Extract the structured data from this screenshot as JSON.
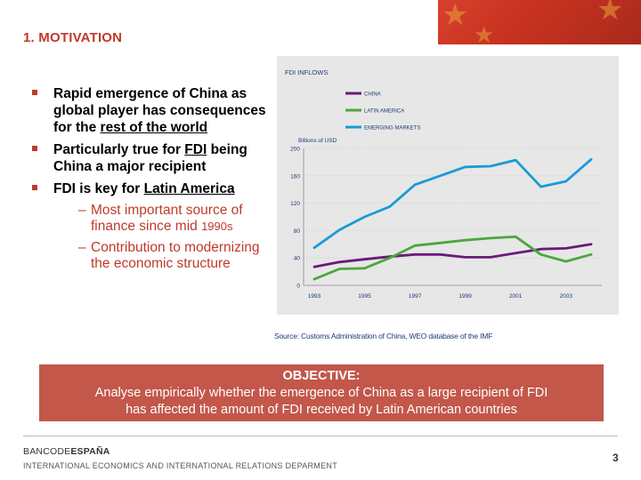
{
  "slide": {
    "title": "1. MOTIVATION",
    "page_number": "3"
  },
  "bullets": [
    {
      "parts": [
        "Rapid emergence of China as global player has consequences for the ",
        "rest of the world",
        ""
      ]
    },
    {
      "parts": [
        "Particularly true for ",
        "FDI",
        " being China a major recipient"
      ]
    },
    {
      "parts": [
        "FDI is key for ",
        "Latin America",
        ""
      ]
    }
  ],
  "sub_bullets": [
    {
      "dash": "–",
      "text": "Most important source of finance since mid ",
      "small": "1990s"
    },
    {
      "dash": "–",
      "text": "Contribution to modernizing the economic structure",
      "small": ""
    }
  ],
  "chart_data": {
    "type": "line",
    "title": "FDI INFLOWS",
    "ylabel": "Billions of USD",
    "ylim": [
      0,
      200
    ],
    "yticks": [
      0,
      40,
      80,
      120,
      160,
      200
    ],
    "x": [
      1993,
      1994,
      1995,
      1996,
      1997,
      1998,
      1999,
      2000,
      2001,
      2002,
      2003,
      2004
    ],
    "xtick_labels": [
      "1993",
      "1995",
      "1997",
      "1999",
      "2001",
      "2003"
    ],
    "legend_position": "top-center",
    "series": [
      {
        "name": "CHINA",
        "color": "#6a1a78",
        "values": [
          27,
          34,
          38,
          42,
          45,
          45,
          41,
          41,
          47,
          53,
          54,
          60
        ]
      },
      {
        "name": "LATIN AMERICA",
        "color": "#4aa83c",
        "values": [
          9,
          24,
          25,
          40,
          58,
          62,
          66,
          69,
          71,
          45,
          35,
          45
        ]
      },
      {
        "name": "EMERGING MARKETS",
        "color": "#1b9ad6",
        "values": [
          55,
          81,
          100,
          115,
          147,
          160,
          173,
          174,
          183,
          144,
          152,
          184
        ]
      }
    ],
    "source": "Source: Customs Administration of China, WEO database of the IMF"
  },
  "objective": {
    "label": "OBJECTIVE:",
    "text": "Analyse empirically whether the emergence of China as a large recipient of FDI has affected the amount of FDI received by Latin American countries"
  },
  "footer": {
    "bank_name_regular": "BANCODE",
    "bank_name_bold": "ESPAÑA",
    "department": "INTERNATIONAL ECONOMICS AND INTERNATIONAL RELATIONS DEPARMENT"
  },
  "colors": {
    "accent_red": "#c0392b",
    "objective_bg": "#c2574a",
    "chart_bg": "#e7e7e7",
    "source_blue": "#1f3a73"
  }
}
